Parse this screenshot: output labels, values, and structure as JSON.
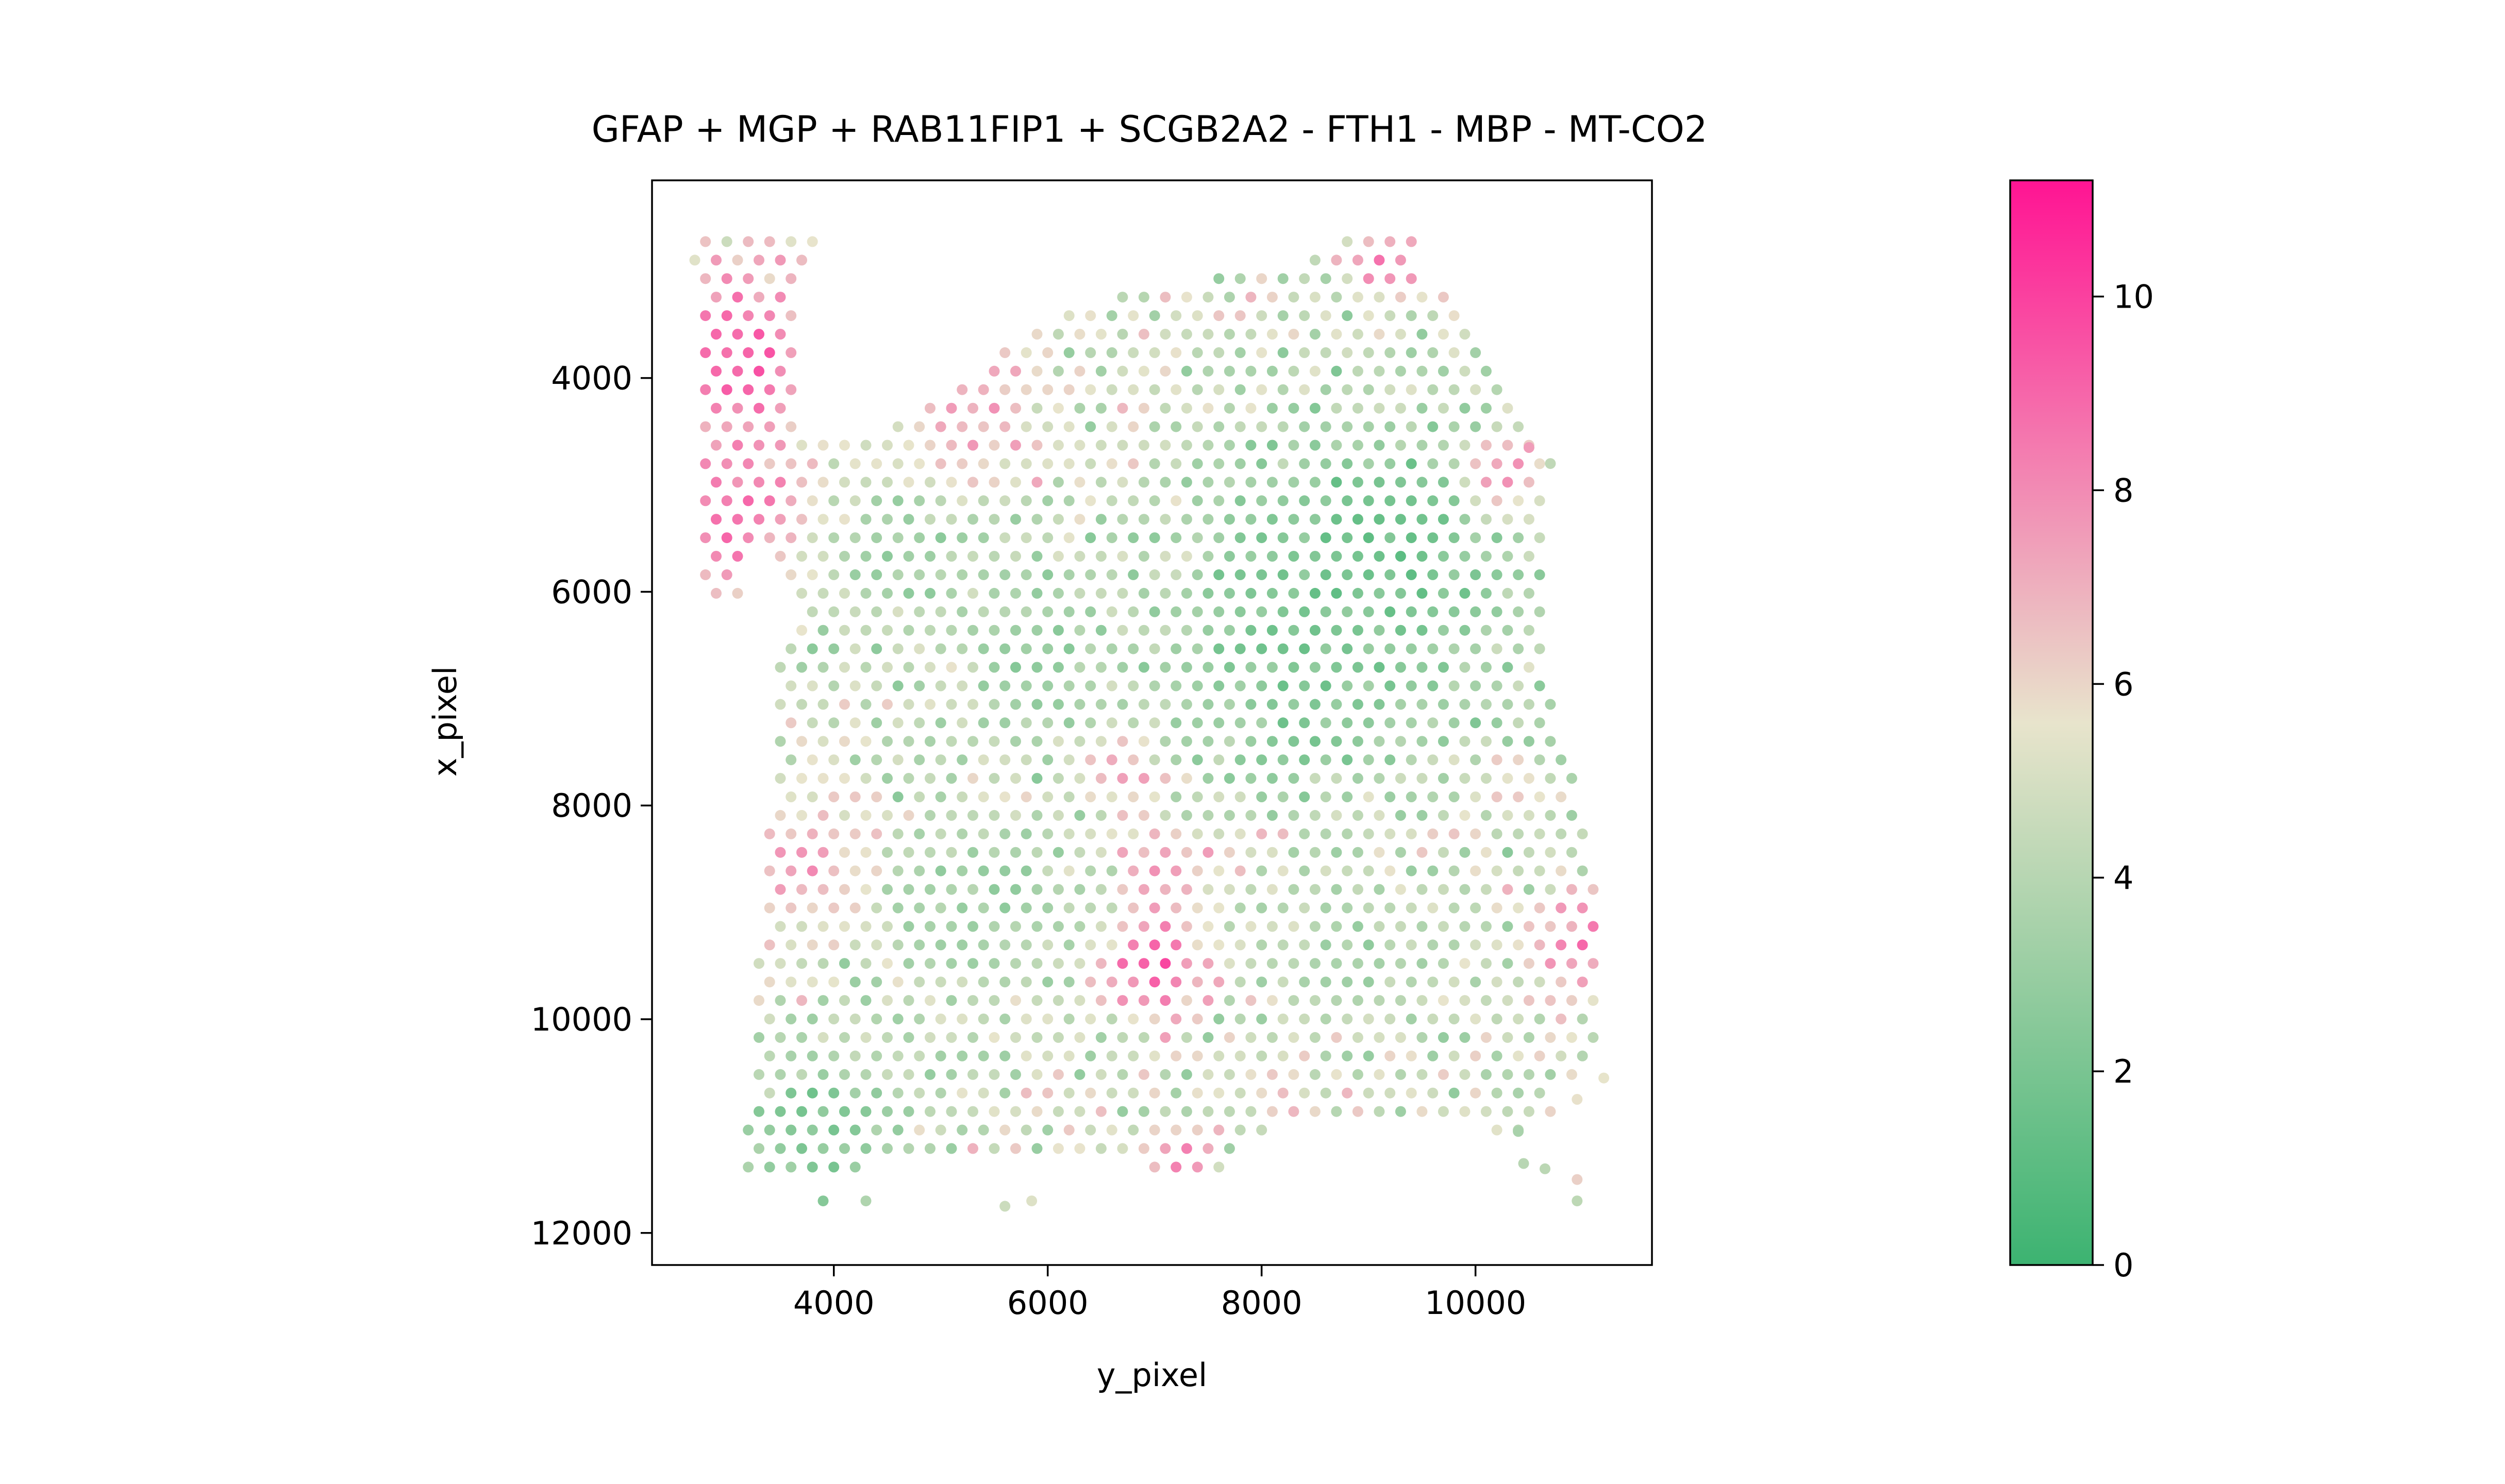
{
  "chart_data": {
    "type": "scatter",
    "title": "GFAP + MGP + RAB11FIP1 + SCGB2A2 - FTH1 - MBP - MT-CO2",
    "xlabel": "y_pixel",
    "ylabel": "x_pixel",
    "xlim": [
      2300,
      11650
    ],
    "ylim": [
      12300,
      2150
    ],
    "y_inverted": true,
    "xticks": [
      4000,
      6000,
      8000,
      10000
    ],
    "yticks": [
      4000,
      6000,
      8000,
      10000,
      12000
    ],
    "xtick_labels": [
      "4000",
      "6000",
      "8000",
      "10000"
    ],
    "ytick_labels": [
      "4000",
      "6000",
      "8000",
      "10000",
      "12000"
    ],
    "grid": false,
    "colorbar": {
      "range": [
        0,
        11.2
      ],
      "ticks": [
        0,
        2,
        4,
        6,
        8,
        10
      ],
      "tick_labels": [
        "0",
        "2",
        "4",
        "6",
        "8",
        "10"
      ],
      "colormap": [
        "#3cb371",
        "#e8e4cc",
        "#ff1493"
      ],
      "colormap_stops": [
        0,
        0.5,
        1
      ]
    },
    "spot_spacing": 200,
    "tissue_outline": [
      [
        2750,
        2600
      ],
      [
        3300,
        2600
      ],
      [
        3850,
        2600
      ],
      [
        3850,
        2900
      ],
      [
        3600,
        3300
      ],
      [
        3650,
        4350
      ],
      [
        3800,
        4550
      ],
      [
        4500,
        4450
      ],
      [
        5200,
        4100
      ],
      [
        5800,
        3550
      ],
      [
        6300,
        3350
      ],
      [
        7100,
        3100
      ],
      [
        7800,
        3050
      ],
      [
        8500,
        2850
      ],
      [
        9050,
        2600
      ],
      [
        9350,
        2600
      ],
      [
        9500,
        2950
      ],
      [
        9800,
        3350
      ],
      [
        10150,
        4000
      ],
      [
        10500,
        4550
      ],
      [
        10700,
        4800
      ],
      [
        10600,
        5900
      ],
      [
        10650,
        6700
      ],
      [
        10850,
        7500
      ],
      [
        11100,
        8500
      ],
      [
        11200,
        9500
      ],
      [
        11100,
        10300
      ],
      [
        10800,
        10650
      ],
      [
        10700,
        11000
      ],
      [
        10400,
        11100
      ],
      [
        9600,
        10900
      ],
      [
        9000,
        10950
      ],
      [
        8300,
        10950
      ],
      [
        7800,
        11100
      ],
      [
        7700,
        11400
      ],
      [
        7000,
        11400
      ],
      [
        6500,
        11300
      ],
      [
        5600,
        11350
      ],
      [
        4700,
        11350
      ],
      [
        4200,
        11400
      ],
      [
        3700,
        11400
      ],
      [
        3300,
        11500
      ],
      [
        3050,
        11450
      ],
      [
        3250,
        10800
      ],
      [
        3250,
        10000
      ],
      [
        3300,
        9200
      ],
      [
        3400,
        8200
      ],
      [
        3450,
        7400
      ],
      [
        3500,
        6500
      ],
      [
        3700,
        6000
      ],
      [
        3400,
        5700
      ],
      [
        3400,
        5500
      ],
      [
        3200,
        5600
      ],
      [
        3100,
        6050
      ],
      [
        2750,
        6050
      ],
      [
        2700,
        5100
      ],
      [
        2800,
        3700
      ],
      [
        2650,
        3000
      ]
    ],
    "extra_spots": [
      [
        10500,
        4650
      ],
      [
        10700,
        4800
      ],
      [
        11200,
        10550
      ],
      [
        10950,
        10750
      ],
      [
        10400,
        11050
      ],
      [
        10450,
        11350
      ],
      [
        10650,
        11400
      ],
      [
        10950,
        11500
      ],
      [
        10950,
        11700
      ],
      [
        3900,
        11700
      ],
      [
        4300,
        11700
      ],
      [
        5600,
        11750
      ],
      [
        5850,
        11700
      ]
    ],
    "hotspots": [
      {
        "x": 3100,
        "y": 3800,
        "r": 900,
        "value": 9.2
      },
      {
        "x": 3000,
        "y": 5300,
        "r": 700,
        "value": 8.8
      },
      {
        "x": 7000,
        "y": 9500,
        "r": 450,
        "value": 9.6
      },
      {
        "x": 7100,
        "y": 8600,
        "r": 380,
        "value": 8.2
      },
      {
        "x": 3700,
        "y": 8600,
        "r": 600,
        "value": 7.4
      },
      {
        "x": 11000,
        "y": 9300,
        "r": 400,
        "value": 8.6
      },
      {
        "x": 10300,
        "y": 4900,
        "r": 350,
        "value": 8.4
      },
      {
        "x": 9200,
        "y": 2900,
        "r": 350,
        "value": 8.2
      },
      {
        "x": 5300,
        "y": 4300,
        "r": 650,
        "value": 7.4
      },
      {
        "x": 7200,
        "y": 11300,
        "r": 300,
        "value": 8.8
      },
      {
        "x": 6700,
        "y": 7700,
        "r": 300,
        "value": 7.6
      }
    ],
    "coolspots": [
      {
        "x": 9000,
        "y": 5800,
        "r": 1500,
        "value": 1.6
      },
      {
        "x": 8300,
        "y": 6800,
        "r": 900,
        "value": 2.2
      },
      {
        "x": 3900,
        "y": 11000,
        "r": 700,
        "value": 2.0
      },
      {
        "x": 6000,
        "y": 6500,
        "r": 900,
        "value": 3.0
      },
      {
        "x": 5300,
        "y": 9000,
        "r": 900,
        "value": 3.2
      },
      {
        "x": 8800,
        "y": 9300,
        "r": 700,
        "value": 3.4
      },
      {
        "x": 4600,
        "y": 5600,
        "r": 700,
        "value": 3.2
      }
    ],
    "background_value": 4.8
  }
}
